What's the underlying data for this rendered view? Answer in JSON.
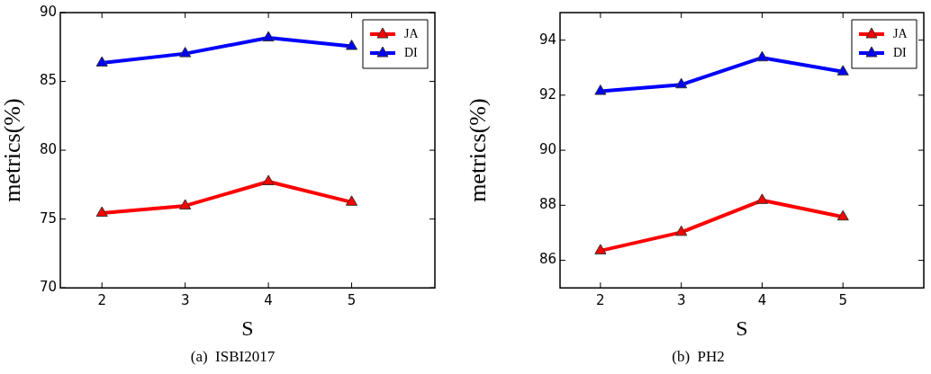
{
  "chart_data": [
    {
      "type": "line",
      "xlabel": "S",
      "ylabel": "metrics(%)",
      "annotations": [
        "(a)  ISBI2017"
      ],
      "x": [
        2,
        3,
        4,
        5
      ],
      "xlim": [
        1.5,
        6
      ],
      "xticks": [
        2,
        3,
        4,
        5
      ],
      "ylim": [
        70,
        90
      ],
      "yticks": [
        70,
        75,
        80,
        85,
        90
      ],
      "grid": false,
      "legend": "top right",
      "marker": "triangle",
      "line_style": "solid",
      "series": [
        {
          "name": "JA",
          "color": "#ff0000",
          "values": [
            75.43,
            75.96,
            77.72,
            76.23
          ]
        },
        {
          "name": "DI",
          "color": "#0000ff",
          "values": [
            86.34,
            87.02,
            88.17,
            87.55
          ]
        }
      ]
    },
    {
      "type": "line",
      "xlabel": "S",
      "ylabel": "metrics(%)",
      "annotations": [
        "(b)  PH2"
      ],
      "x": [
        2,
        3,
        4,
        5
      ],
      "xlim": [
        1.5,
        6
      ],
      "xticks": [
        2,
        3,
        4,
        5
      ],
      "ylim": [
        85,
        95
      ],
      "yticks": [
        86,
        88,
        90,
        92,
        94
      ],
      "grid": false,
      "legend": "top right",
      "marker": "triangle",
      "line_style": "solid",
      "series": [
        {
          "name": "JA",
          "color": "#ff0000",
          "values": [
            86.35,
            87.02,
            88.18,
            87.58
          ]
        },
        {
          "name": "DI",
          "color": "#0000ff",
          "values": [
            92.14,
            92.38,
            93.36,
            92.85
          ]
        }
      ]
    }
  ]
}
